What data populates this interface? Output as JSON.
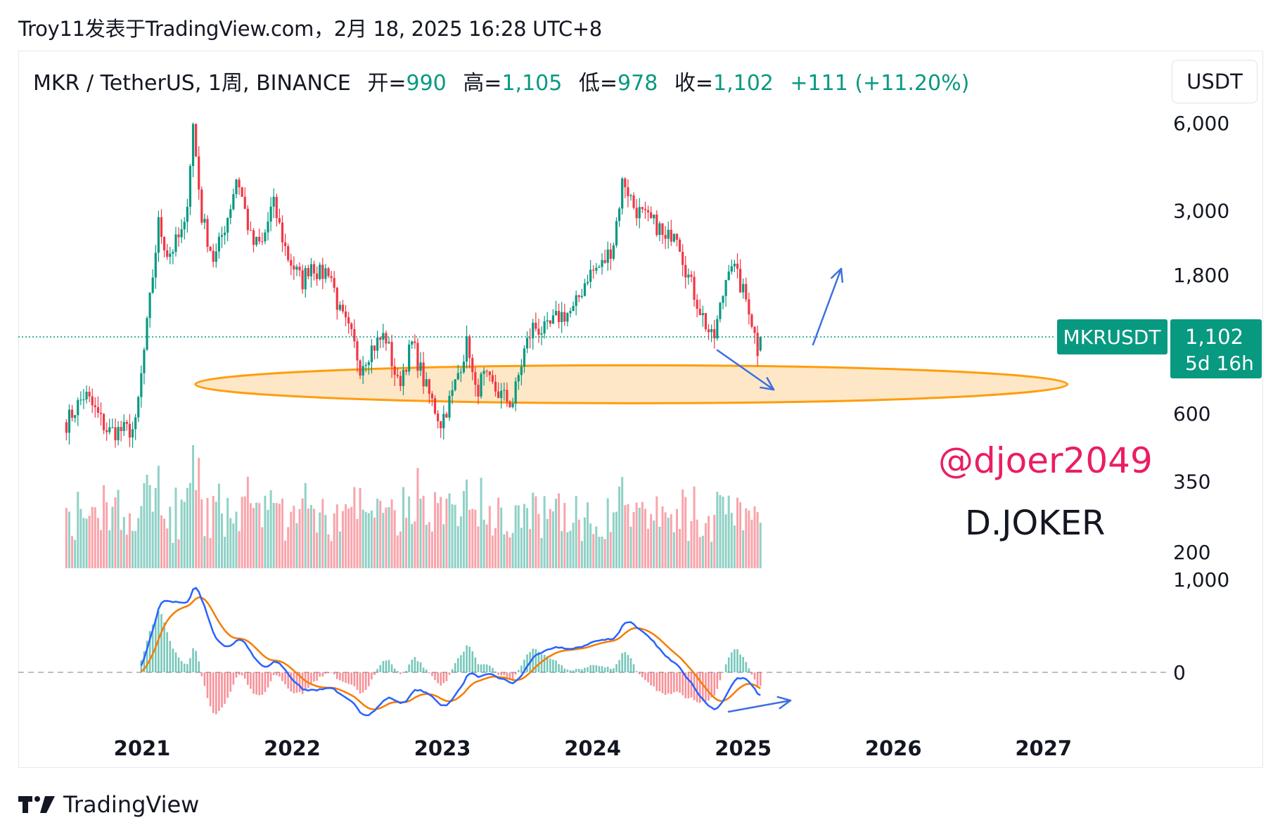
{
  "header": "Troy11发表于TradingView.com，2月 18, 2025 16:28 UTC+8",
  "legend": {
    "symbol": "MKR / TetherUS, 1周, BINANCE",
    "open_label": "开=",
    "open": "990",
    "high_label": "高=",
    "high": "1,105",
    "low_label": "低=",
    "low": "978",
    "close_label": "收=",
    "close": "1,102",
    "change": "+111 (+11.20%)"
  },
  "currency": "USDT",
  "price_badge": {
    "symbol": "MKRUSDT",
    "price": "1,102",
    "countdown": "5d 16h"
  },
  "annotations": {
    "handle": "@djoer2049",
    "name": "D.JOKER"
  },
  "brand": "TradingView",
  "colors": {
    "up": "#089981",
    "down": "#f23645",
    "macd": "#2962ff",
    "signal": "#f57c00",
    "zone_fill": "#fde6c4",
    "zone_stroke": "#ff9800",
    "handle": "#e91e63",
    "arrow": "#3d6fe0"
  },
  "chart_data": {
    "type": "candlestick",
    "interval": "1W",
    "y_scale": "log",
    "price_ticks": [
      {
        "value": 6000,
        "label": "6,000"
      },
      {
        "value": 3000,
        "label": "3,000"
      },
      {
        "value": 1800,
        "label": "1,800"
      },
      {
        "value": 600,
        "label": "600"
      },
      {
        "value": 350,
        "label": "350"
      },
      {
        "value": 200,
        "label": "200"
      }
    ],
    "current_price": 1102,
    "x_ticks": [
      "2021",
      "2022",
      "2023",
      "2024",
      "2025",
      "2026",
      "2027"
    ],
    "x_range": [
      "2020-07",
      "2027-09"
    ],
    "price_path": [
      [
        "2020-07-01",
        560
      ],
      [
        "2020-08-15",
        700
      ],
      [
        "2020-10-10",
        520
      ],
      [
        "2020-12-15",
        530
      ],
      [
        "2021-01-10",
        1100
      ],
      [
        "2021-02-10",
        2700
      ],
      [
        "2021-03-05",
        2100
      ],
      [
        "2021-04-15",
        2600
      ],
      [
        "2021-05-05",
        5900
      ],
      [
        "2021-05-25",
        2900
      ],
      [
        "2021-06-25",
        2000
      ],
      [
        "2021-08-01",
        3000
      ],
      [
        "2021-08-20",
        4000
      ],
      [
        "2021-09-25",
        2300
      ],
      [
        "2021-10-20",
        2300
      ],
      [
        "2021-11-15",
        3200
      ],
      [
        "2021-12-20",
        2100
      ],
      [
        "2022-01-25",
        1700
      ],
      [
        "2022-02-15",
        2000
      ],
      [
        "2022-03-10",
        1800
      ],
      [
        "2022-04-01",
        1900
      ],
      [
        "2022-04-25",
        1350
      ],
      [
        "2022-05-25",
        1100
      ],
      [
        "2022-06-15",
        880
      ],
      [
        "2022-07-10",
        1000
      ],
      [
        "2022-08-15",
        1120
      ],
      [
        "2022-09-15",
        750
      ],
      [
        "2022-10-20",
        1050
      ],
      [
        "2022-11-20",
        750
      ],
      [
        "2022-12-28",
        560
      ],
      [
        "2023-01-25",
        700
      ],
      [
        "2023-02-15",
        900
      ],
      [
        "2023-03-05",
        1080
      ],
      [
        "2023-03-20",
        700
      ],
      [
        "2023-04-10",
        800
      ],
      [
        "2023-05-20",
        700
      ],
      [
        "2023-06-20",
        650
      ],
      [
        "2023-07-20",
        1000
      ],
      [
        "2023-08-10",
        1200
      ],
      [
        "2023-09-10",
        1150
      ],
      [
        "2023-10-10",
        1300
      ],
      [
        "2023-11-15",
        1350
      ],
      [
        "2023-12-20",
        1800
      ],
      [
        "2024-01-25",
        1950
      ],
      [
        "2024-02-20",
        2300
      ],
      [
        "2024-03-15",
        3900
      ],
      [
        "2024-04-10",
        3100
      ],
      [
        "2024-05-10",
        2800
      ],
      [
        "2024-06-10",
        2650
      ],
      [
        "2024-06-25",
        2300
      ],
      [
        "2024-07-20",
        2700
      ],
      [
        "2024-08-10",
        2000
      ],
      [
        "2024-08-25",
        1700
      ],
      [
        "2024-09-20",
        1350
      ],
      [
        "2024-10-20",
        1050
      ],
      [
        "2024-11-15",
        1600
      ],
      [
        "2024-11-30",
        2100
      ],
      [
        "2024-12-15",
        1800
      ],
      [
        "2025-01-15",
        1400
      ],
      [
        "2025-02-05",
        1000
      ],
      [
        "2025-02-18",
        1102
      ]
    ],
    "indicators": [
      "volume",
      "macd"
    ],
    "macd_zero_label": "0",
    "volume_axis_label": "1,000",
    "zone": {
      "center_date": "2024-03-01",
      "low": 690,
      "high": 830
    }
  }
}
